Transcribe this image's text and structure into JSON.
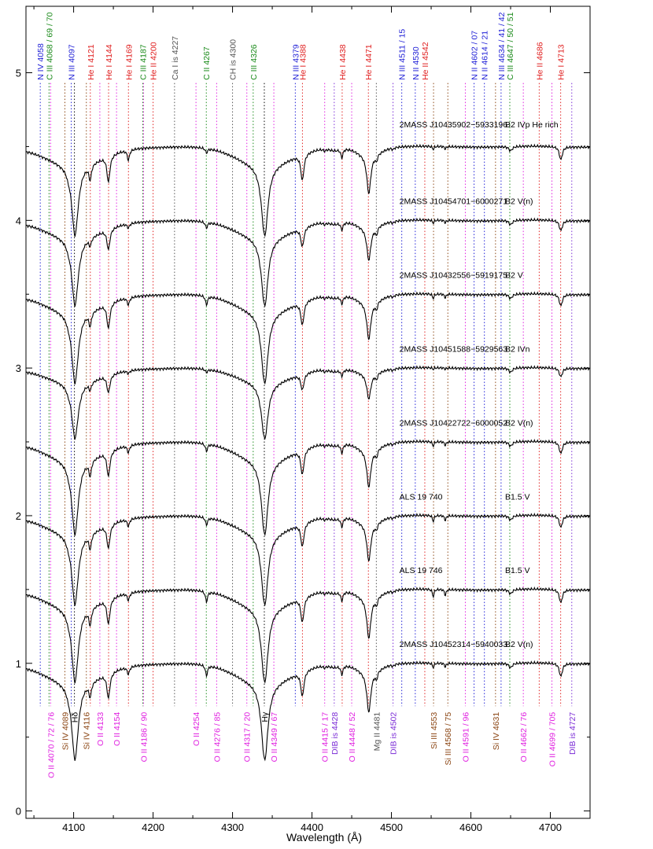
{
  "chart_data": {
    "type": "line",
    "xlabel": "Wavelength (Å)",
    "ylabel": "",
    "xlim": [
      4040,
      4750
    ],
    "ylim": [
      -0.05,
      5.45
    ],
    "xticks": [
      4100,
      4200,
      4300,
      4400,
      4500,
      4600,
      4700
    ],
    "yticks": [
      0,
      1,
      2,
      3,
      4,
      5
    ],
    "grid": false,
    "colors": {
      "blue": "#1f1fd6",
      "green": "#1a8a1a",
      "red": "#e02020",
      "gray": "#555555",
      "magenta": "#e020e0",
      "brown": "#8b4513",
      "violet": "#7b2cd6",
      "black": "#000000",
      "spectrum": "#000000"
    },
    "top_lines": [
      {
        "label": "N IV 4058",
        "x": 4058,
        "color": "blue"
      },
      {
        "label": "C III 4068 / 69 / 70",
        "x": 4069,
        "color": "green"
      },
      {
        "label": "N III 4097",
        "x": 4097,
        "color": "blue"
      },
      {
        "label": "He I 4121",
        "x": 4121,
        "color": "red"
      },
      {
        "label": "He I 4144",
        "x": 4144,
        "color": "red"
      },
      {
        "label": "He I 4169",
        "x": 4169,
        "color": "red"
      },
      {
        "label": "C III 4187",
        "x": 4187,
        "color": "green"
      },
      {
        "label": "He II 4200",
        "x": 4200,
        "color": "red"
      },
      {
        "label": "Ca I is 4227",
        "x": 4227,
        "color": "gray"
      },
      {
        "label": "C II 4267",
        "x": 4267,
        "color": "green"
      },
      {
        "label": "CH is 4300",
        "x": 4300,
        "color": "gray"
      },
      {
        "label": "C III 4326",
        "x": 4326,
        "color": "green"
      },
      {
        "label": "N III 4379",
        "x": 4379,
        "color": "blue"
      },
      {
        "label": "He I 4388",
        "x": 4388,
        "color": "red"
      },
      {
        "label": "He I 4438",
        "x": 4438,
        "color": "red"
      },
      {
        "label": "He I 4471",
        "x": 4471,
        "color": "red"
      },
      {
        "label": "N III 4511 / 15",
        "x": 4513,
        "color": "blue"
      },
      {
        "label": "N II 4530",
        "x": 4530,
        "color": "blue"
      },
      {
        "label": "He II 4542",
        "x": 4542,
        "color": "red"
      },
      {
        "label": "N II 4602 / 07",
        "x": 4604,
        "color": "blue"
      },
      {
        "label": "N II 4614 / 21",
        "x": 4617,
        "color": "blue"
      },
      {
        "label": "N III 4634 / 41 / 42",
        "x": 4638,
        "color": "blue"
      },
      {
        "label": "C III 4647 / 50 / 51",
        "x": 4649,
        "color": "green"
      },
      {
        "label": "He II 4686",
        "x": 4686,
        "color": "red"
      },
      {
        "label": "He I 4713",
        "x": 4713,
        "color": "red"
      }
    ],
    "bottom_lines": [
      {
        "label": "O II 4070 / 72 / 76",
        "x": 4071,
        "color": "magenta"
      },
      {
        "label": "Si IV 4089",
        "x": 4089,
        "color": "brown"
      },
      {
        "label": "Hδ",
        "x": 4101,
        "color": "black"
      },
      {
        "label": "Si IV 4116",
        "x": 4116,
        "color": "brown"
      },
      {
        "label": "O II 4133",
        "x": 4133,
        "color": "magenta"
      },
      {
        "label": "O II 4154",
        "x": 4154,
        "color": "magenta"
      },
      {
        "label": "O II 4186 / 90",
        "x": 4188,
        "color": "magenta"
      },
      {
        "label": "O II 4254",
        "x": 4254,
        "color": "magenta"
      },
      {
        "label": "O II 4276 / 85",
        "x": 4280,
        "color": "magenta"
      },
      {
        "label": "O II 4317 / 20",
        "x": 4318,
        "color": "magenta"
      },
      {
        "label": "Hγ",
        "x": 4340,
        "color": "black"
      },
      {
        "label": "O II 4349 / 67",
        "x": 4352,
        "color": "magenta"
      },
      {
        "label": "O II 4415 / 17",
        "x": 4416,
        "color": "magenta"
      },
      {
        "label": "DIB is 4428",
        "x": 4428,
        "color": "violet"
      },
      {
        "label": "O II 4448 / 52",
        "x": 4450,
        "color": "magenta"
      },
      {
        "label": "Mg II 4481",
        "x": 4481,
        "color": "gray"
      },
      {
        "label": "DIB is 4502",
        "x": 4502,
        "color": "violet"
      },
      {
        "label": "Si III 4553",
        "x": 4553,
        "color": "brown"
      },
      {
        "label": "Si III 4568 / 75",
        "x": 4571,
        "color": "brown"
      },
      {
        "label": "O II 4591 / 96",
        "x": 4593,
        "color": "magenta"
      },
      {
        "label": "Si IV 4631",
        "x": 4631,
        "color": "brown"
      },
      {
        "label": "O II 4662 / 76",
        "x": 4666,
        "color": "magenta"
      },
      {
        "label": "O II 4699 / 705",
        "x": 4702,
        "color": "magenta"
      },
      {
        "label": "DIB is 4727",
        "x": 4727,
        "color": "violet"
      }
    ],
    "series": [
      {
        "name": "2MASS J10435902−5933196",
        "sptype": "B2 IVp He rich",
        "offset": 4.5,
        "label_y": 4.63,
        "depths": {
          "hd": 0.48,
          "hg": 0.48,
          "hei4026": 0.08,
          "hei4121": 0.1,
          "hei4144": 0.18,
          "hei4169": 0.07,
          "hei4388": 0.18,
          "hei4438": 0.06,
          "hei4471": 0.26,
          "hei4713": 0.09,
          "cii4267": 0.03,
          "mgii4481": 0.04,
          "siiii4553": 0.02,
          "dib": 0.02
        }
      },
      {
        "name": "2MASS J10454701−6000271",
        "sptype": "B2 V(n)",
        "offset": 4.0,
        "label_y": 4.11,
        "depths": {
          "hd": 0.46,
          "hg": 0.46,
          "hei4026": 0.08,
          "hei4121": 0.05,
          "hei4144": 0.14,
          "hei4169": 0.03,
          "hei4388": 0.13,
          "hei4438": 0.05,
          "hei4471": 0.22,
          "hei4713": 0.07,
          "cii4267": 0.04,
          "mgii4481": 0.05,
          "siiii4553": 0.02,
          "dib": 0.02
        }
      },
      {
        "name": "2MASS J10432556−5919175",
        "sptype": "B2 V",
        "offset": 3.5,
        "label_y": 3.61,
        "depths": {
          "hd": 0.48,
          "hg": 0.48,
          "hei4026": 0.08,
          "hei4121": 0.09,
          "hei4144": 0.17,
          "hei4169": 0.05,
          "hei4388": 0.16,
          "hei4438": 0.05,
          "hei4471": 0.25,
          "hei4713": 0.08,
          "cii4267": 0.06,
          "mgii4481": 0.05,
          "siiii4553": 0.03,
          "dib": 0.02
        }
      },
      {
        "name": "2MASS J10451588−5929563",
        "sptype": "B2 IVn",
        "offset": 3.0,
        "label_y": 3.11,
        "depths": {
          "hd": 0.38,
          "hg": 0.38,
          "hei4026": 0.07,
          "hei4121": 0.05,
          "hei4144": 0.12,
          "hei4169": 0.02,
          "hei4388": 0.11,
          "hei4438": 0.04,
          "hei4471": 0.17,
          "hei4713": 0.06,
          "cii4267": 0.02,
          "mgii4481": 0.04,
          "siiii4553": 0.01,
          "dib": 0.02
        }
      },
      {
        "name": "2MASS J10422722−6000052",
        "sptype": "B2 V(n)",
        "offset": 2.5,
        "label_y": 2.61,
        "depths": {
          "hd": 0.5,
          "hg": 0.5,
          "hei4026": 0.08,
          "hei4121": 0.1,
          "hei4144": 0.17,
          "hei4169": 0.05,
          "hei4388": 0.17,
          "hei4438": 0.06,
          "hei4471": 0.25,
          "hei4713": 0.08,
          "cii4267": 0.05,
          "mgii4481": 0.05,
          "siiii4553": 0.03,
          "dib": 0.02
        }
      },
      {
        "name": "ALS 19 740",
        "sptype": "B1.5 V",
        "offset": 2.0,
        "label_y": 2.11,
        "depths": {
          "hd": 0.48,
          "hg": 0.48,
          "hei4026": 0.08,
          "hei4121": 0.1,
          "hei4144": 0.16,
          "hei4169": 0.05,
          "hei4388": 0.16,
          "hei4438": 0.06,
          "hei4471": 0.25,
          "hei4713": 0.08,
          "cii4267": 0.05,
          "mgii4481": 0.04,
          "siiii4553": 0.04,
          "dib": 0.02
        }
      },
      {
        "name": "ALS 19 746",
        "sptype": "B1.5 V",
        "offset": 1.5,
        "label_y": 1.61,
        "depths": {
          "hd": 0.5,
          "hg": 0.5,
          "hei4026": 0.08,
          "hei4121": 0.11,
          "hei4144": 0.17,
          "hei4169": 0.05,
          "hei4388": 0.17,
          "hei4438": 0.06,
          "hei4471": 0.27,
          "hei4713": 0.09,
          "cii4267": 0.07,
          "mgii4481": 0.05,
          "siiii4553": 0.05,
          "dib": 0.02
        }
      },
      {
        "name": "2MASS J10452314−5940033",
        "sptype": "B2 V(n)",
        "offset": 1.0,
        "label_y": 1.11,
        "depths": {
          "hd": 0.52,
          "hg": 0.52,
          "hei4026": 0.08,
          "hei4121": 0.09,
          "hei4144": 0.17,
          "hei4169": 0.05,
          "hei4388": 0.17,
          "hei4438": 0.06,
          "hei4471": 0.27,
          "hei4713": 0.09,
          "cii4267": 0.07,
          "mgii4481": 0.05,
          "siiii4553": 0.03,
          "dib": 0.02
        }
      }
    ]
  }
}
